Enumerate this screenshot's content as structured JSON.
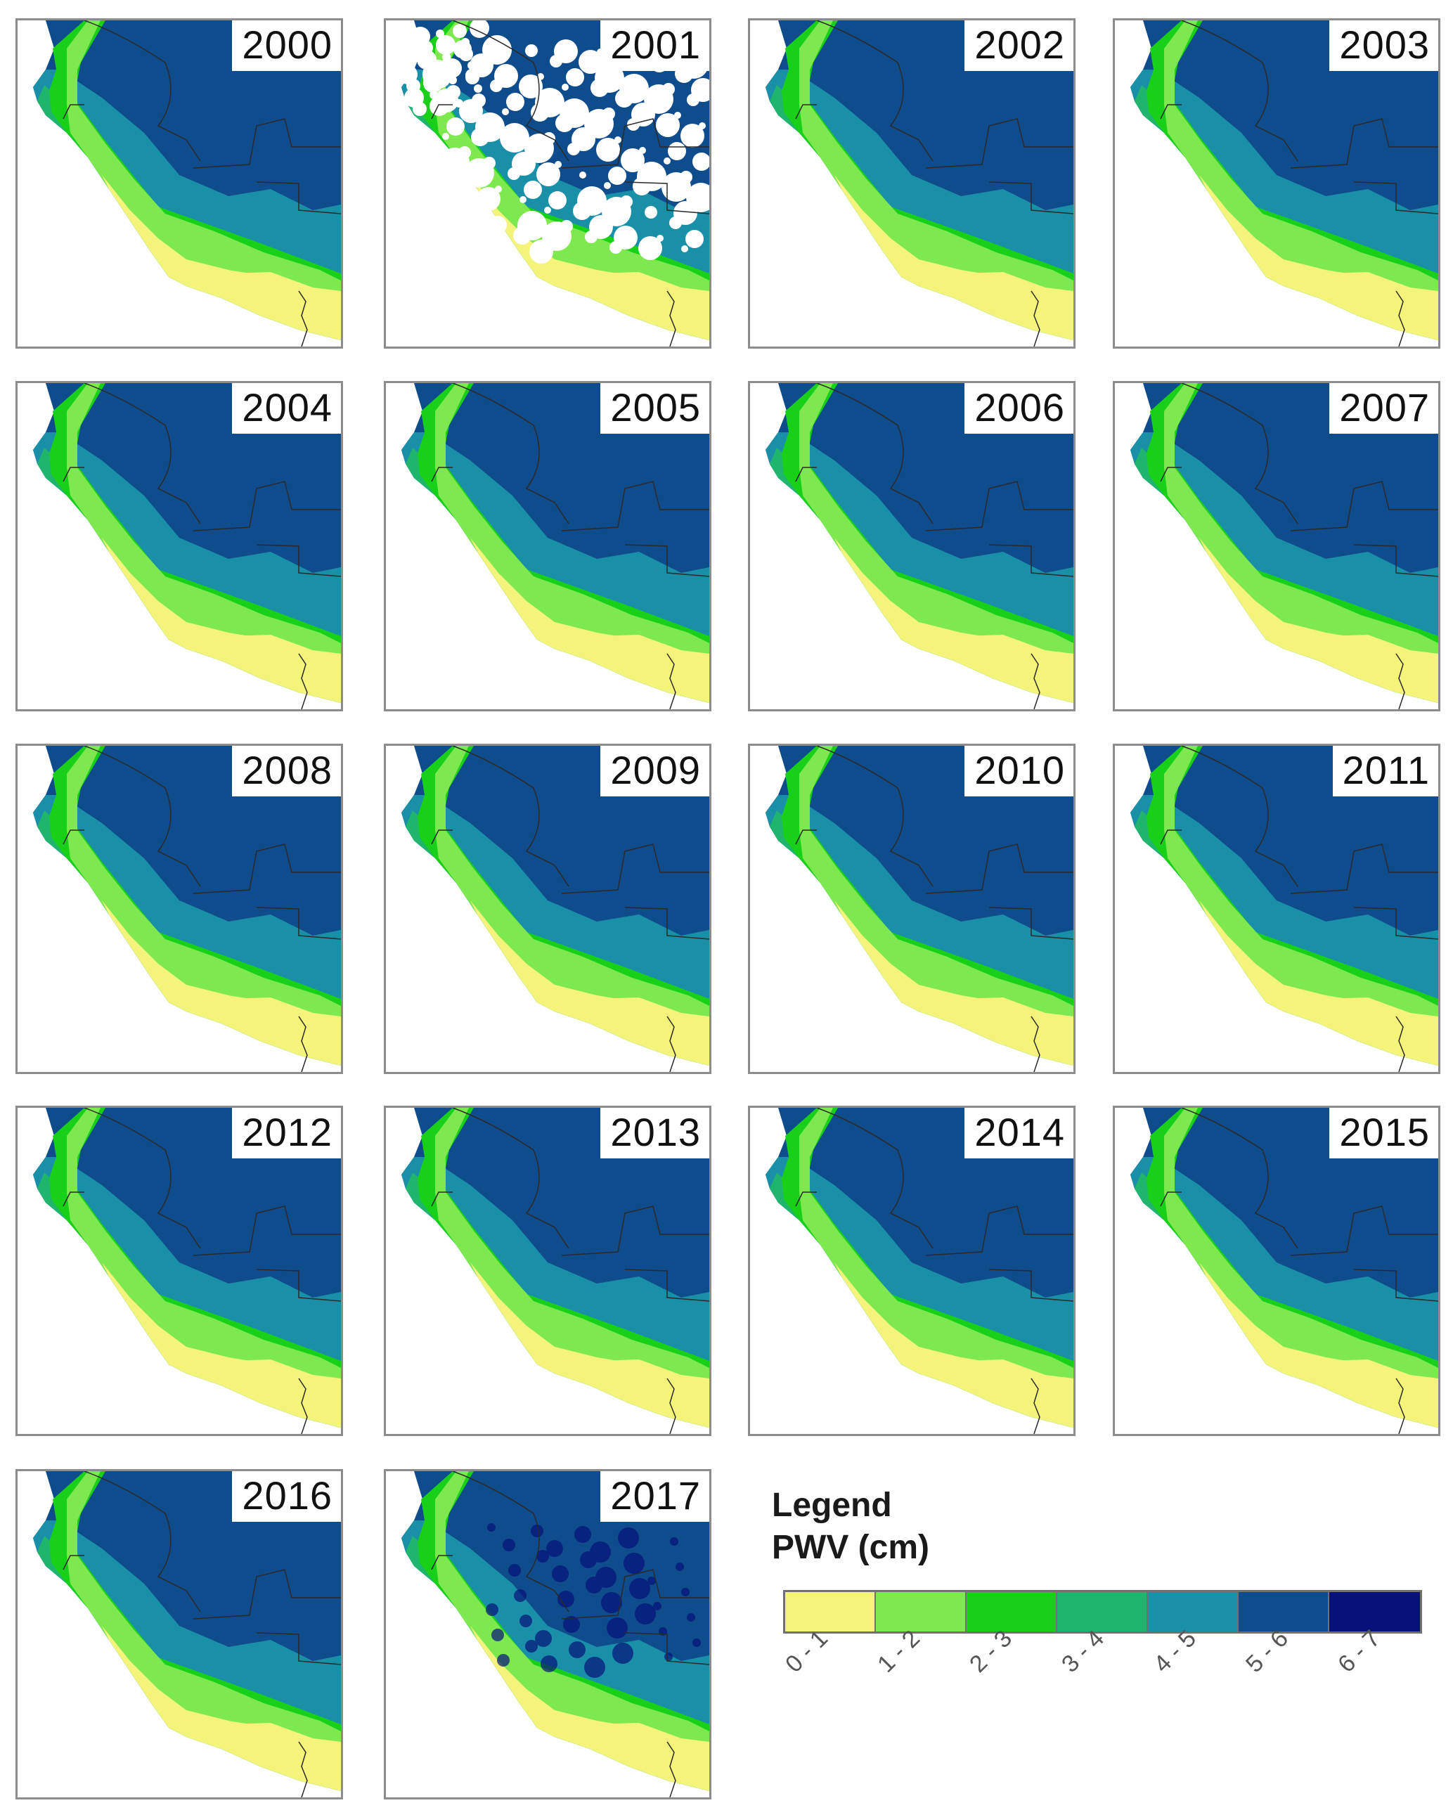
{
  "panels": [
    {
      "year": "2000",
      "variant": "normal"
    },
    {
      "year": "2001",
      "variant": "cloudy"
    },
    {
      "year": "2002",
      "variant": "normal"
    },
    {
      "year": "2003",
      "variant": "normal"
    },
    {
      "year": "2004",
      "variant": "normal"
    },
    {
      "year": "2005",
      "variant": "normal"
    },
    {
      "year": "2006",
      "variant": "normal"
    },
    {
      "year": "2007",
      "variant": "normal"
    },
    {
      "year": "2008",
      "variant": "normal"
    },
    {
      "year": "2009",
      "variant": "normal"
    },
    {
      "year": "2010",
      "variant": "normal"
    },
    {
      "year": "2011",
      "variant": "normal"
    },
    {
      "year": "2012",
      "variant": "normal"
    },
    {
      "year": "2013",
      "variant": "normal"
    },
    {
      "year": "2014",
      "variant": "normal"
    },
    {
      "year": "2015",
      "variant": "normal"
    },
    {
      "year": "2016",
      "variant": "normal"
    },
    {
      "year": "2017",
      "variant": "dark"
    }
  ],
  "legend": {
    "title_line1": "Legend",
    "title_line2": "PWV (cm)",
    "classes": [
      {
        "label": "0 - 1",
        "color": "#f4f47a"
      },
      {
        "label": "1 - 2",
        "color": "#7ee84f"
      },
      {
        "label": "2 - 3",
        "color": "#19d019"
      },
      {
        "label": "3 - 4",
        "color": "#1fb56c"
      },
      {
        "label": "4 - 5",
        "color": "#1a8fa8"
      },
      {
        "label": "5 - 6",
        "color": "#0f4c8c"
      },
      {
        "label": "6 - 7",
        "color": "#06127a"
      }
    ]
  },
  "colors": {
    "ocean": "#ffffff",
    "border_line": "#2a2a2a",
    "cloud": "#ffffff"
  }
}
